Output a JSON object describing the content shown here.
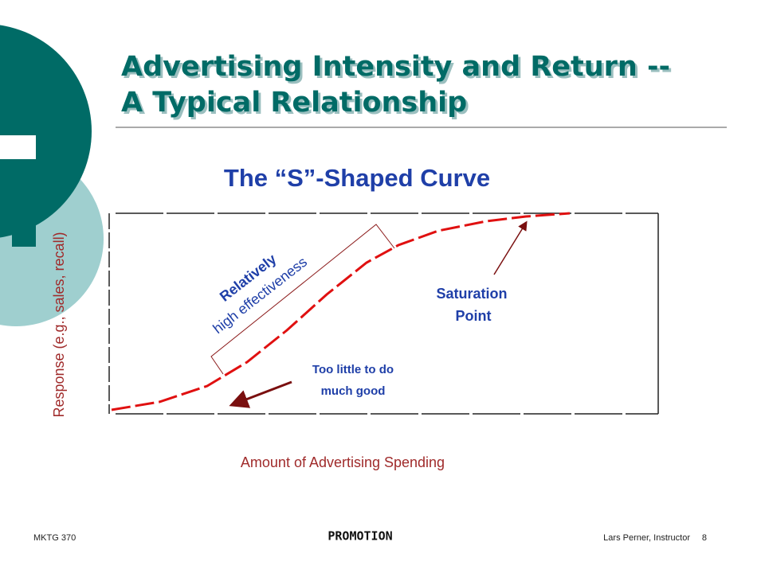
{
  "header": {
    "title_lines": [
      "Advertising Intensity and Return --",
      "A Typical Relationship"
    ]
  },
  "figure": {
    "title": "The “S”-Shaped Curve",
    "y_label": "Response (e.g., sales, recall)",
    "x_label": "Amount of Advertising Spending",
    "annotations": {
      "effectiveness": [
        "Relatively",
        "high effectiveness"
      ],
      "saturation": [
        "Saturation",
        "Point"
      ],
      "too_little": [
        "Too little to do",
        "much good"
      ]
    }
  },
  "footer": {
    "course": "MKTG 370",
    "topic": "PROMOTION",
    "instructor": "Lars Perner, Instructor",
    "page": 8
  }
}
